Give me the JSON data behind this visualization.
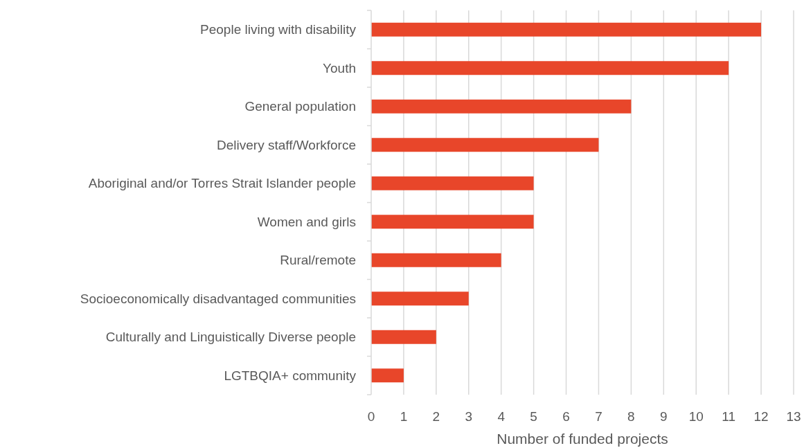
{
  "chart_data": {
    "type": "bar",
    "orientation": "horizontal",
    "xlabel": "Number of funded projects",
    "categories": [
      "People living with disability",
      "Youth",
      "General population",
      "Delivery staff/Workforce",
      "Aboriginal and/or Torres Strait Islander people",
      "Women and girls",
      "Rural/remote",
      "Socioeconomically disadvantaged communities",
      "Culturally and Linguistically Diverse people",
      "LGTBQIA+ community"
    ],
    "values": [
      12,
      11,
      8,
      7,
      5,
      5,
      4,
      3,
      2,
      1
    ],
    "color": "#e8462a",
    "xlim": [
      0,
      13
    ],
    "xticks": [
      0,
      1,
      2,
      3,
      4,
      5,
      6,
      7,
      8,
      9,
      10,
      11,
      12,
      13
    ],
    "grid": "x"
  }
}
